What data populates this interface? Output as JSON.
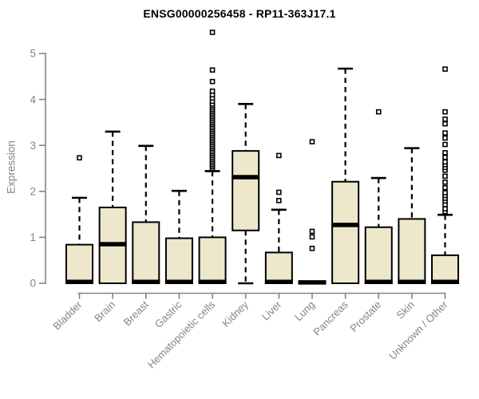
{
  "chart_data": {
    "type": "box",
    "title": "ENSG00000256458 - RP11-363J17.1",
    "ylabel": "Expression",
    "xlabel": "",
    "ylim": [
      0,
      5
    ],
    "yticks": [
      0,
      1,
      2,
      3,
      4,
      5
    ],
    "grid": false,
    "legend": false,
    "categories": [
      "Bladder",
      "Brain",
      "Breast",
      "Gastric",
      "Hematopoietic cells",
      "Kidney",
      "Liver",
      "Lung",
      "Pancreas",
      "Prostate",
      "Skin",
      "Unknown / Other"
    ],
    "boxes": [
      {
        "label": "Bladder",
        "whisklo": 0,
        "q1": 0,
        "median": 0.03,
        "q3": 0.84,
        "whishi": 1.86,
        "outliers": [
          2.73
        ]
      },
      {
        "label": "Brain",
        "whisklo": 0,
        "q1": 0,
        "median": 0.85,
        "q3": 1.65,
        "whishi": 3.3,
        "outliers": []
      },
      {
        "label": "Breast",
        "whisklo": 0,
        "q1": 0,
        "median": 0.03,
        "q3": 1.33,
        "whishi": 2.99,
        "outliers": []
      },
      {
        "label": "Gastric",
        "whisklo": 0,
        "q1": 0,
        "median": 0.03,
        "q3": 0.98,
        "whishi": 2.01,
        "outliers": []
      },
      {
        "label": "Hematopoietic cells",
        "whisklo": 0,
        "q1": 0,
        "median": 0.03,
        "q3": 1.0,
        "whishi": 2.44,
        "outliers": [
          2.5,
          2.54,
          2.58,
          2.62,
          2.66,
          2.7,
          2.74,
          2.78,
          2.82,
          2.86,
          2.9,
          2.94,
          2.98,
          3.02,
          3.06,
          3.1,
          3.14,
          3.18,
          3.22,
          3.26,
          3.3,
          3.34,
          3.38,
          3.42,
          3.46,
          3.5,
          3.54,
          3.58,
          3.62,
          3.66,
          3.7,
          3.74,
          3.78,
          3.82,
          3.86,
          3.9,
          3.96,
          4.03,
          4.1,
          4.18,
          4.39,
          4.64,
          5.46
        ]
      },
      {
        "label": "Kidney",
        "whisklo": 0,
        "q1": 1.15,
        "median": 2.31,
        "q3": 2.88,
        "whishi": 3.9,
        "outliers": []
      },
      {
        "label": "Liver",
        "whisklo": 0,
        "q1": 0,
        "median": 0.03,
        "q3": 0.67,
        "whishi": 1.6,
        "outliers": [
          1.8,
          1.98,
          2.78
        ]
      },
      {
        "label": "Lung",
        "whisklo": 0,
        "q1": 0,
        "median": 0.02,
        "q3": 0.04,
        "whishi": 0.04,
        "outliers": [
          0.76,
          1.01,
          1.13,
          3.08
        ]
      },
      {
        "label": "Pancreas",
        "whisklo": 0,
        "q1": 0,
        "median": 1.27,
        "q3": 2.21,
        "whishi": 4.67,
        "outliers": []
      },
      {
        "label": "Prostate",
        "whisklo": 0,
        "q1": 0,
        "median": 0.03,
        "q3": 1.22,
        "whishi": 2.29,
        "outliers": [
          3.73
        ]
      },
      {
        "label": "Skin",
        "whisklo": 0,
        "q1": 0,
        "median": 0.03,
        "q3": 1.4,
        "whishi": 2.94,
        "outliers": []
      },
      {
        "label": "Unknown / Other",
        "whisklo": 0,
        "q1": 0,
        "median": 0.03,
        "q3": 0.61,
        "whishi": 1.49,
        "outliers": [
          1.56,
          1.62,
          1.71,
          1.79,
          1.85,
          1.91,
          1.97,
          2.08,
          2.2,
          2.33,
          2.46,
          2.52,
          2.58,
          2.64,
          2.74,
          2.84,
          3.02,
          3.16,
          3.27,
          3.47,
          3.57,
          3.73,
          4.66
        ]
      }
    ],
    "colors": {
      "box_fill": "#EDE8CC",
      "box_stroke": "#000000",
      "median": "#000000",
      "whisker": "#000000",
      "outlier_stroke": "#000000",
      "outlier_fill": "#FFFFFF",
      "axis": "#848484",
      "tick_label": "#848484",
      "title": "#000000",
      "background": "#FFFFFF"
    }
  }
}
